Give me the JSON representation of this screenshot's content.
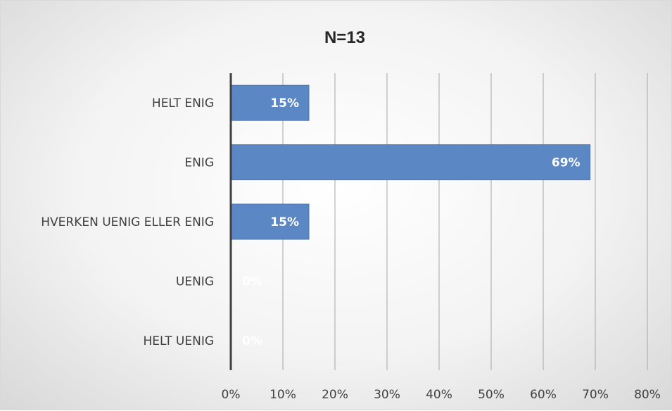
{
  "chart_data": {
    "type": "bar",
    "orientation": "horizontal",
    "title": "N=13",
    "categories": [
      "HELT ENIG",
      "ENIG",
      "HVERKEN UENIG ELLER ENIG",
      "UENIG",
      "HELT UENIG"
    ],
    "values": [
      0.15,
      0.69,
      0.15,
      0,
      0
    ],
    "data_labels": [
      "15%",
      "69%",
      "15%",
      "0%",
      "0%"
    ],
    "xlim": [
      0,
      0.8
    ],
    "x_ticks": [
      0,
      0.1,
      0.2,
      0.3,
      0.4,
      0.5,
      0.6,
      0.7,
      0.8
    ],
    "x_tick_labels": [
      "0%",
      "10%",
      "20%",
      "30%",
      "40%",
      "50%",
      "60%",
      "70%",
      "80%"
    ],
    "grid": true,
    "legend": "none",
    "bar_color": "#5b87c5"
  }
}
